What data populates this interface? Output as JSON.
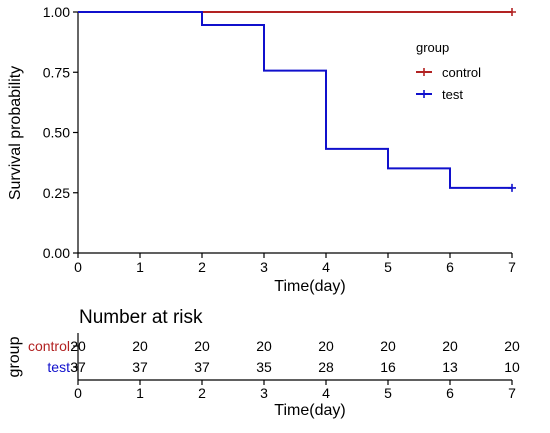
{
  "chart_data": [
    {
      "type": "line",
      "subtype": "kaplan-meier-step",
      "xlabel": "Time(day)",
      "ylabel": "Survival probability",
      "xlim": [
        0,
        7
      ],
      "ylim": [
        0,
        1
      ],
      "x_ticks": [
        "0",
        "1",
        "2",
        "3",
        "4",
        "5",
        "6",
        "7"
      ],
      "y_ticks": [
        "0.00",
        "0.25",
        "0.50",
        "0.75",
        "1.00"
      ],
      "grid": false,
      "legend": {
        "title": "group",
        "position": "top-right"
      },
      "series": [
        {
          "name": "control",
          "color": "#b22222",
          "x": [
            0,
            7
          ],
          "y": [
            1.0,
            1.0
          ],
          "censored": [
            {
              "x": 7,
              "y": 1.0
            }
          ]
        },
        {
          "name": "test",
          "color": "#1010cc",
          "x": [
            0,
            2,
            3,
            4,
            5,
            6,
            7
          ],
          "y": [
            1.0,
            0.946,
            0.757,
            0.432,
            0.351,
            0.27,
            0.27
          ],
          "censored": [
            {
              "x": 7,
              "y": 0.27
            }
          ]
        }
      ]
    },
    {
      "type": "table",
      "title": "Number at risk",
      "xlabel": "Time(day)",
      "ylabel": "group",
      "x_ticks": [
        "0",
        "1",
        "2",
        "3",
        "4",
        "5",
        "6",
        "7"
      ],
      "rows": [
        {
          "group": "control",
          "color": "#b22222",
          "values": [
            20,
            20,
            20,
            20,
            20,
            20,
            20,
            20
          ]
        },
        {
          "group": "test",
          "color": "#1010cc",
          "values": [
            37,
            37,
            37,
            35,
            28,
            16,
            13,
            10
          ]
        }
      ]
    }
  ]
}
